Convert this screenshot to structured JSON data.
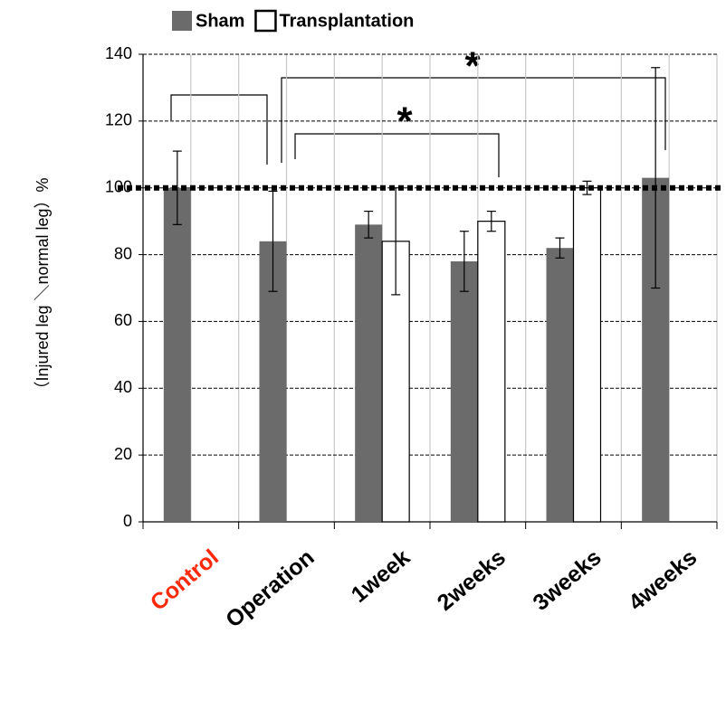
{
  "chart_data": {
    "type": "bar",
    "y_label": "（Injured  leg ＼normal  leg）%",
    "categories": [
      "Control",
      "Operation",
      "1week",
      "2weeks",
      "3weeks",
      "4weeks"
    ],
    "series": [
      {
        "name": "Sham",
        "color": "#6b6b6b",
        "values": [
          100,
          84,
          89,
          78,
          82,
          103
        ],
        "errors": [
          11,
          15,
          4,
          9,
          3,
          33
        ]
      },
      {
        "name": "Transplantation",
        "color": "#ffffff",
        "values": [
          null,
          null,
          84,
          90,
          100,
          null
        ],
        "errors": [
          null,
          null,
          16,
          3,
          2,
          null
        ]
      }
    ],
    "reference_line": 100,
    "annotations": [
      "*",
      "*"
    ],
    "ylim": [
      0,
      140
    ],
    "yticks": [
      0,
      20,
      40,
      60,
      80,
      100,
      120,
      140
    ],
    "grid": true
  }
}
